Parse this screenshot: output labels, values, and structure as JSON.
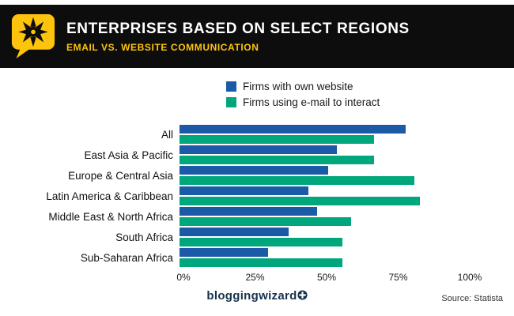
{
  "header": {
    "title": "ENTERPRISES BASED ON SELECT REGIONS",
    "subtitle": "EMAIL VS. WEBSITE COMMUNICATION"
  },
  "legend": [
    {
      "label": "Firms with own website",
      "color": "#1b5aa6"
    },
    {
      "label": "Firms using e-mail to interact",
      "color": "#00a77c"
    }
  ],
  "chart_data": {
    "type": "bar",
    "orientation": "horizontal",
    "title": "Enterprises based on select regions — Email vs. website communication",
    "categories": [
      "All",
      "East Asia & Pacific",
      "Europe & Central Asia",
      "Latin America & Caribbean",
      "Middle East & North Africa",
      "South Africa",
      "Sub-Saharan Africa"
    ],
    "series": [
      {
        "name": "Firms with own website",
        "color": "#1b5aa6",
        "values": [
          79,
          55,
          52,
          45,
          48,
          38,
          31
        ]
      },
      {
        "name": "Firms using e-mail to interact",
        "color": "#00a77c",
        "values": [
          68,
          68,
          82,
          84,
          60,
          57,
          57
        ]
      }
    ],
    "x_ticks": [
      "0%",
      "25%",
      "50%",
      "75%",
      "100%"
    ],
    "xlim": [
      0,
      100
    ],
    "grid": false,
    "legend_position": "top"
  },
  "footer": {
    "brand": "bloggingwizard",
    "source": "Source: Statista"
  },
  "colors": {
    "header_bg": "#0d0d0d",
    "accent_yellow": "#fec40d",
    "bar_blue": "#1b5aa6",
    "bar_green": "#00a77c"
  }
}
